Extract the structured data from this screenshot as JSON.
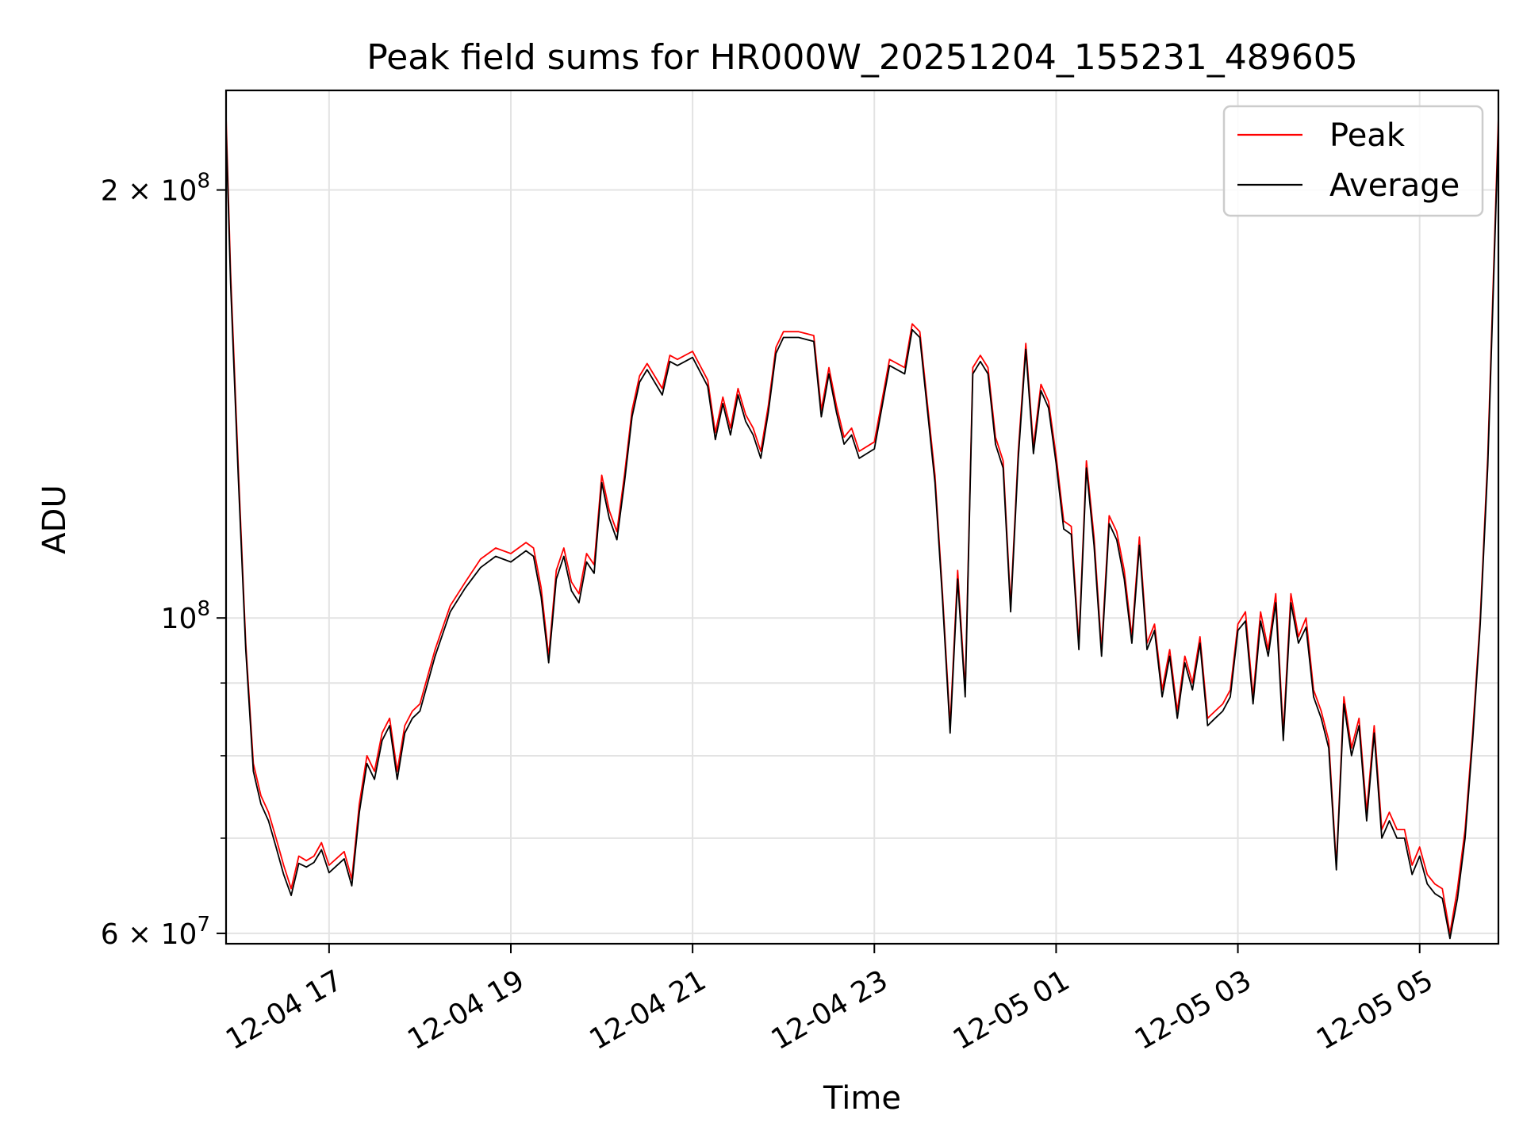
{
  "chart_data": {
    "type": "line",
    "title": "Peak field sums for HR000W_20251204_155231_489605",
    "xlabel": "Time",
    "ylabel": "ADU",
    "y_scale": "log",
    "ylim": [
      59000000,
      235000000
    ],
    "xlim": [
      "2025-12-04 15:52",
      "2025-12-05 05:52"
    ],
    "grid": true,
    "legend_position": "top-right",
    "x_ticks": [
      {
        "value": "2025-12-04 17:00",
        "label": "12-04 17"
      },
      {
        "value": "2025-12-04 19:00",
        "label": "12-04 19"
      },
      {
        "value": "2025-12-04 21:00",
        "label": "12-04 21"
      },
      {
        "value": "2025-12-04 23:00",
        "label": "12-04 23"
      },
      {
        "value": "2025-12-05 01:00",
        "label": "12-05 01"
      },
      {
        "value": "2025-12-05 03:00",
        "label": "12-05 03"
      },
      {
        "value": "2025-12-05 05:00",
        "label": "12-05 05"
      }
    ],
    "y_ticks": [
      {
        "value": 60000000,
        "label_mantissa": "6",
        "label_base": "× 10",
        "label_exp": "7"
      },
      {
        "value": 100000000,
        "label_mantissa": "",
        "label_base": "10",
        "label_exp": "8"
      },
      {
        "value": 200000000,
        "label_mantissa": "2",
        "label_base": "× 10",
        "label_exp": "8"
      }
    ],
    "y_minor_ticks": [
      70000000,
      80000000,
      90000000
    ],
    "x": [
      "2025-12-04 15:52",
      "2025-12-04 15:55",
      "2025-12-04 16:00",
      "2025-12-04 16:05",
      "2025-12-04 16:10",
      "2025-12-04 16:15",
      "2025-12-04 16:20",
      "2025-12-04 16:25",
      "2025-12-04 16:30",
      "2025-12-04 16:35",
      "2025-12-04 16:40",
      "2025-12-04 16:45",
      "2025-12-04 16:50",
      "2025-12-04 16:55",
      "2025-12-04 17:00",
      "2025-12-04 17:10",
      "2025-12-04 17:15",
      "2025-12-04 17:20",
      "2025-12-04 17:25",
      "2025-12-04 17:30",
      "2025-12-04 17:35",
      "2025-12-04 17:40",
      "2025-12-04 17:45",
      "2025-12-04 17:50",
      "2025-12-04 17:55",
      "2025-12-04 18:00",
      "2025-12-04 18:10",
      "2025-12-04 18:20",
      "2025-12-04 18:30",
      "2025-12-04 18:40",
      "2025-12-04 18:50",
      "2025-12-04 19:00",
      "2025-12-04 19:10",
      "2025-12-04 19:15",
      "2025-12-04 19:20",
      "2025-12-04 19:25",
      "2025-12-04 19:30",
      "2025-12-04 19:35",
      "2025-12-04 19:40",
      "2025-12-04 19:45",
      "2025-12-04 19:50",
      "2025-12-04 19:55",
      "2025-12-04 20:00",
      "2025-12-04 20:05",
      "2025-12-04 20:10",
      "2025-12-04 20:15",
      "2025-12-04 20:20",
      "2025-12-04 20:25",
      "2025-12-04 20:30",
      "2025-12-04 20:40",
      "2025-12-04 20:45",
      "2025-12-04 20:50",
      "2025-12-04 21:00",
      "2025-12-04 21:10",
      "2025-12-04 21:15",
      "2025-12-04 21:20",
      "2025-12-04 21:25",
      "2025-12-04 21:30",
      "2025-12-04 21:35",
      "2025-12-04 21:40",
      "2025-12-04 21:45",
      "2025-12-04 21:50",
      "2025-12-04 21:55",
      "2025-12-04 22:00",
      "2025-12-04 22:10",
      "2025-12-04 22:20",
      "2025-12-04 22:25",
      "2025-12-04 22:30",
      "2025-12-04 22:35",
      "2025-12-04 22:40",
      "2025-12-04 22:45",
      "2025-12-04 22:50",
      "2025-12-04 23:00",
      "2025-12-04 23:10",
      "2025-12-04 23:20",
      "2025-12-04 23:25",
      "2025-12-04 23:30",
      "2025-12-04 23:40",
      "2025-12-04 23:45",
      "2025-12-04 23:50",
      "2025-12-04 23:55",
      "2025-12-05 00:00",
      "2025-12-05 00:05",
      "2025-12-05 00:10",
      "2025-12-05 00:15",
      "2025-12-05 00:20",
      "2025-12-05 00:25",
      "2025-12-05 00:30",
      "2025-12-05 00:35",
      "2025-12-05 00:40",
      "2025-12-05 00:45",
      "2025-12-05 00:50",
      "2025-12-05 00:55",
      "2025-12-05 01:00",
      "2025-12-05 01:05",
      "2025-12-05 01:10",
      "2025-12-05 01:15",
      "2025-12-05 01:20",
      "2025-12-05 01:25",
      "2025-12-05 01:30",
      "2025-12-05 01:35",
      "2025-12-05 01:40",
      "2025-12-05 01:45",
      "2025-12-05 01:50",
      "2025-12-05 01:55",
      "2025-12-05 02:00",
      "2025-12-05 02:05",
      "2025-12-05 02:10",
      "2025-12-05 02:15",
      "2025-12-05 02:20",
      "2025-12-05 02:25",
      "2025-12-05 02:30",
      "2025-12-05 02:35",
      "2025-12-05 02:40",
      "2025-12-05 02:45",
      "2025-12-05 02:50",
      "2025-12-05 02:55",
      "2025-12-05 03:00",
      "2025-12-05 03:05",
      "2025-12-05 03:10",
      "2025-12-05 03:15",
      "2025-12-05 03:20",
      "2025-12-05 03:25",
      "2025-12-05 03:30",
      "2025-12-05 03:35",
      "2025-12-05 03:40",
      "2025-12-05 03:45",
      "2025-12-05 03:50",
      "2025-12-05 03:55",
      "2025-12-05 04:00",
      "2025-12-05 04:05",
      "2025-12-05 04:10",
      "2025-12-05 04:15",
      "2025-12-05 04:20",
      "2025-12-05 04:25",
      "2025-12-05 04:30",
      "2025-12-05 04:35",
      "2025-12-05 04:40",
      "2025-12-05 04:45",
      "2025-12-05 04:50",
      "2025-12-05 04:55",
      "2025-12-05 05:00",
      "2025-12-05 05:05",
      "2025-12-05 05:10",
      "2025-12-05 05:15",
      "2025-12-05 05:20",
      "2025-12-05 05:25",
      "2025-12-05 05:30",
      "2025-12-05 05:35",
      "2025-12-05 05:40",
      "2025-12-05 05:45",
      "2025-12-05 05:52"
    ],
    "series": [
      {
        "name": "Peak",
        "color": "#ff0000",
        "values": [
          225000000,
          175000000,
          128000000,
          96000000,
          79000000,
          75000000,
          73000000,
          70000000,
          67000000,
          64500000,
          68000000,
          67500000,
          68000000,
          69500000,
          67000000,
          68500000,
          65500000,
          74000000,
          80000000,
          78000000,
          83000000,
          85000000,
          78000000,
          84000000,
          86000000,
          87000000,
          95000000,
          102000000,
          106000000,
          110000000,
          112000000,
          111000000,
          113000000,
          112000000,
          105000000,
          94000000,
          108000000,
          112000000,
          106000000,
          104000000,
          111000000,
          109000000,
          126000000,
          119000000,
          115000000,
          126000000,
          140000000,
          148000000,
          151000000,
          145000000,
          153000000,
          152000000,
          154000000,
          147000000,
          135000000,
          143000000,
          136000000,
          145000000,
          139000000,
          136000000,
          131000000,
          141000000,
          155000000,
          159000000,
          159000000,
          158000000,
          140000000,
          150000000,
          141000000,
          134000000,
          136000000,
          131000000,
          133000000,
          152000000,
          150000000,
          161000000,
          159000000,
          126000000,
          104000000,
          84000000,
          108000000,
          89000000,
          150000000,
          153000000,
          150000000,
          134000000,
          129000000,
          102000000,
          131000000,
          156000000,
          132000000,
          146000000,
          142000000,
          130000000,
          117000000,
          116000000,
          96000000,
          129000000,
          114000000,
          95000000,
          118000000,
          115000000,
          108000000,
          97000000,
          114000000,
          96000000,
          99000000,
          89000000,
          95000000,
          86000000,
          94000000,
          90000000,
          97000000,
          85000000,
          86000000,
          87000000,
          89000000,
          99000000,
          101000000,
          88000000,
          101000000,
          95000000,
          104000000,
          83000000,
          104000000,
          97000000,
          100000000,
          89000000,
          86000000,
          82000000,
          67000000,
          88000000,
          81000000,
          85000000,
          73000000,
          84000000,
          71000000,
          73000000,
          71000000,
          71000000,
          67000000,
          69000000,
          66000000,
          65000000,
          64500000,
          60000000,
          64500000,
          71000000,
          83000000,
          100000000,
          130000000,
          225000000
        ]
      },
      {
        "name": "Average",
        "color": "#000000",
        "values": [
          221000000,
          172000000,
          126000000,
          95000000,
          78000000,
          74000000,
          72000000,
          69000000,
          66000000,
          63800000,
          67200000,
          66800000,
          67300000,
          68700000,
          66200000,
          67700000,
          64800000,
          73000000,
          79000000,
          77000000,
          82000000,
          84000000,
          77000000,
          83000000,
          85000000,
          86000000,
          94000000,
          101000000,
          105000000,
          108500000,
          110500000,
          109500000,
          111500000,
          110500000,
          103500000,
          93000000,
          106500000,
          110500000,
          104500000,
          102500000,
          109500000,
          107500000,
          124500000,
          117500000,
          113500000,
          124500000,
          138500000,
          146500000,
          149500000,
          143500000,
          151500000,
          150500000,
          152500000,
          145500000,
          133500000,
          141500000,
          134500000,
          143500000,
          137500000,
          134500000,
          129500000,
          139500000,
          153500000,
          157500000,
          157500000,
          156500000,
          138500000,
          148500000,
          139500000,
          132500000,
          134500000,
          129500000,
          131500000,
          150500000,
          148500000,
          159500000,
          157500000,
          124500000,
          103000000,
          83000000,
          106500000,
          88000000,
          148500000,
          151500000,
          148500000,
          132500000,
          127500000,
          101000000,
          129500000,
          154500000,
          130500000,
          144500000,
          140500000,
          128500000,
          115500000,
          114500000,
          95000000,
          127500000,
          112500000,
          94000000,
          116500000,
          113500000,
          106500000,
          96000000,
          112500000,
          95000000,
          98000000,
          88000000,
          94000000,
          85000000,
          93000000,
          89000000,
          96000000,
          84000000,
          85000000,
          86000000,
          88000000,
          98000000,
          99500000,
          87000000,
          99500000,
          94000000,
          102500000,
          82000000,
          102500000,
          96000000,
          98500000,
          88000000,
          85000000,
          81000000,
          66500000,
          87000000,
          80000000,
          84000000,
          72000000,
          83000000,
          70000000,
          72000000,
          70000000,
          70000000,
          66000000,
          68000000,
          65000000,
          64000000,
          63500000,
          59500000,
          63500000,
          70000000,
          82000000,
          99000000,
          128000000,
          221000000
        ]
      }
    ]
  }
}
